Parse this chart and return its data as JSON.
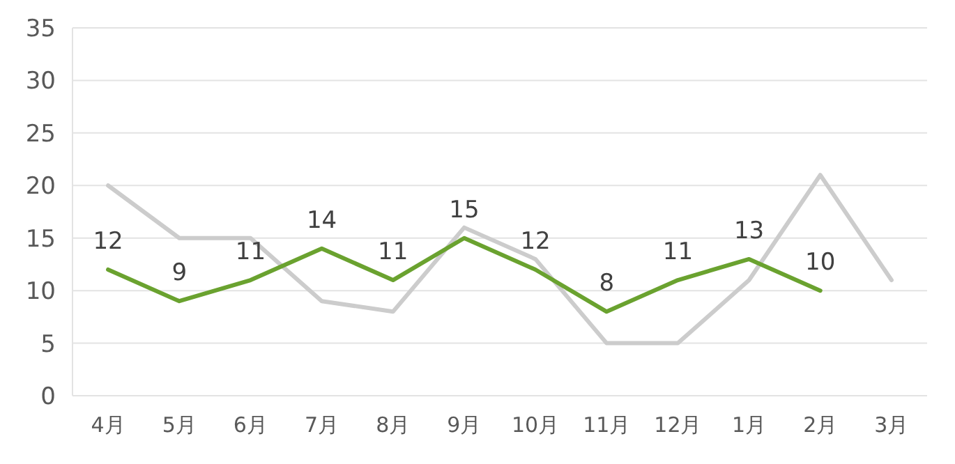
{
  "chart_data": {
    "type": "line",
    "categories": [
      "4月",
      "5月",
      "6月",
      "7月",
      "8月",
      "9月",
      "10月",
      "11月",
      "12月",
      "1月",
      "2月",
      "3月"
    ],
    "series": [
      {
        "color": "#cccccc",
        "values": [
          20,
          15,
          15,
          9,
          8,
          16,
          13,
          5,
          5,
          11,
          21,
          11
        ]
      },
      {
        "color": "#6aa22f",
        "values": [
          12,
          9,
          11,
          14,
          11,
          15,
          12,
          8,
          11,
          13,
          10,
          null
        ],
        "value_labels": [
          "12",
          "9",
          "11",
          "14",
          "11",
          "15",
          "12",
          "8",
          "11",
          "13",
          "10",
          null
        ]
      }
    ],
    "ylim": [
      0,
      35
    ],
    "yticks": [
      0,
      5,
      10,
      15,
      20,
      25,
      30,
      35
    ],
    "grid": "y",
    "marker": "none",
    "line_style": "solid"
  }
}
